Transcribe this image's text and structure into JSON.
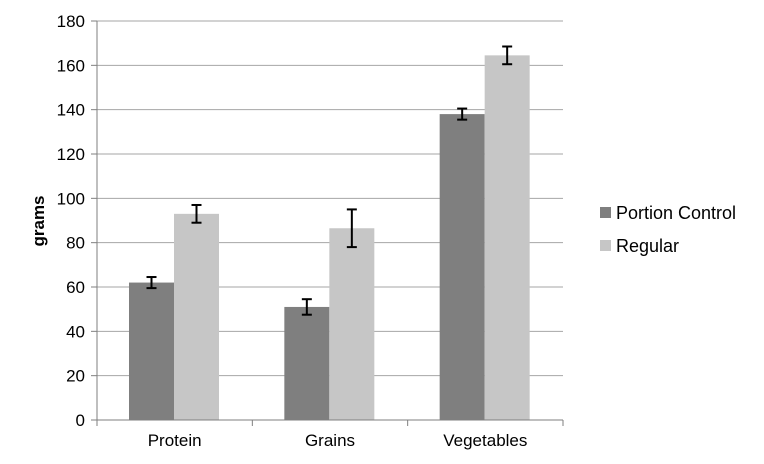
{
  "chart_data": {
    "type": "bar",
    "title": "",
    "xlabel": "",
    "ylabel": "grams",
    "ylim": [
      0,
      180
    ],
    "yticks": [
      0,
      20,
      40,
      60,
      80,
      100,
      120,
      140,
      160,
      180
    ],
    "grid": true,
    "legend_position": "right",
    "categories": [
      "Protein",
      "Grains",
      "Vegetables"
    ],
    "series": [
      {
        "name": "Portion Control",
        "color": "#7f7f7f",
        "values": [
          62,
          51,
          138
        ],
        "errors": [
          2.5,
          3.5,
          2.5
        ]
      },
      {
        "name": "Regular",
        "color": "#c6c6c6",
        "values": [
          93,
          86.5,
          164.5
        ],
        "errors": [
          4,
          8.5,
          4
        ]
      }
    ]
  }
}
